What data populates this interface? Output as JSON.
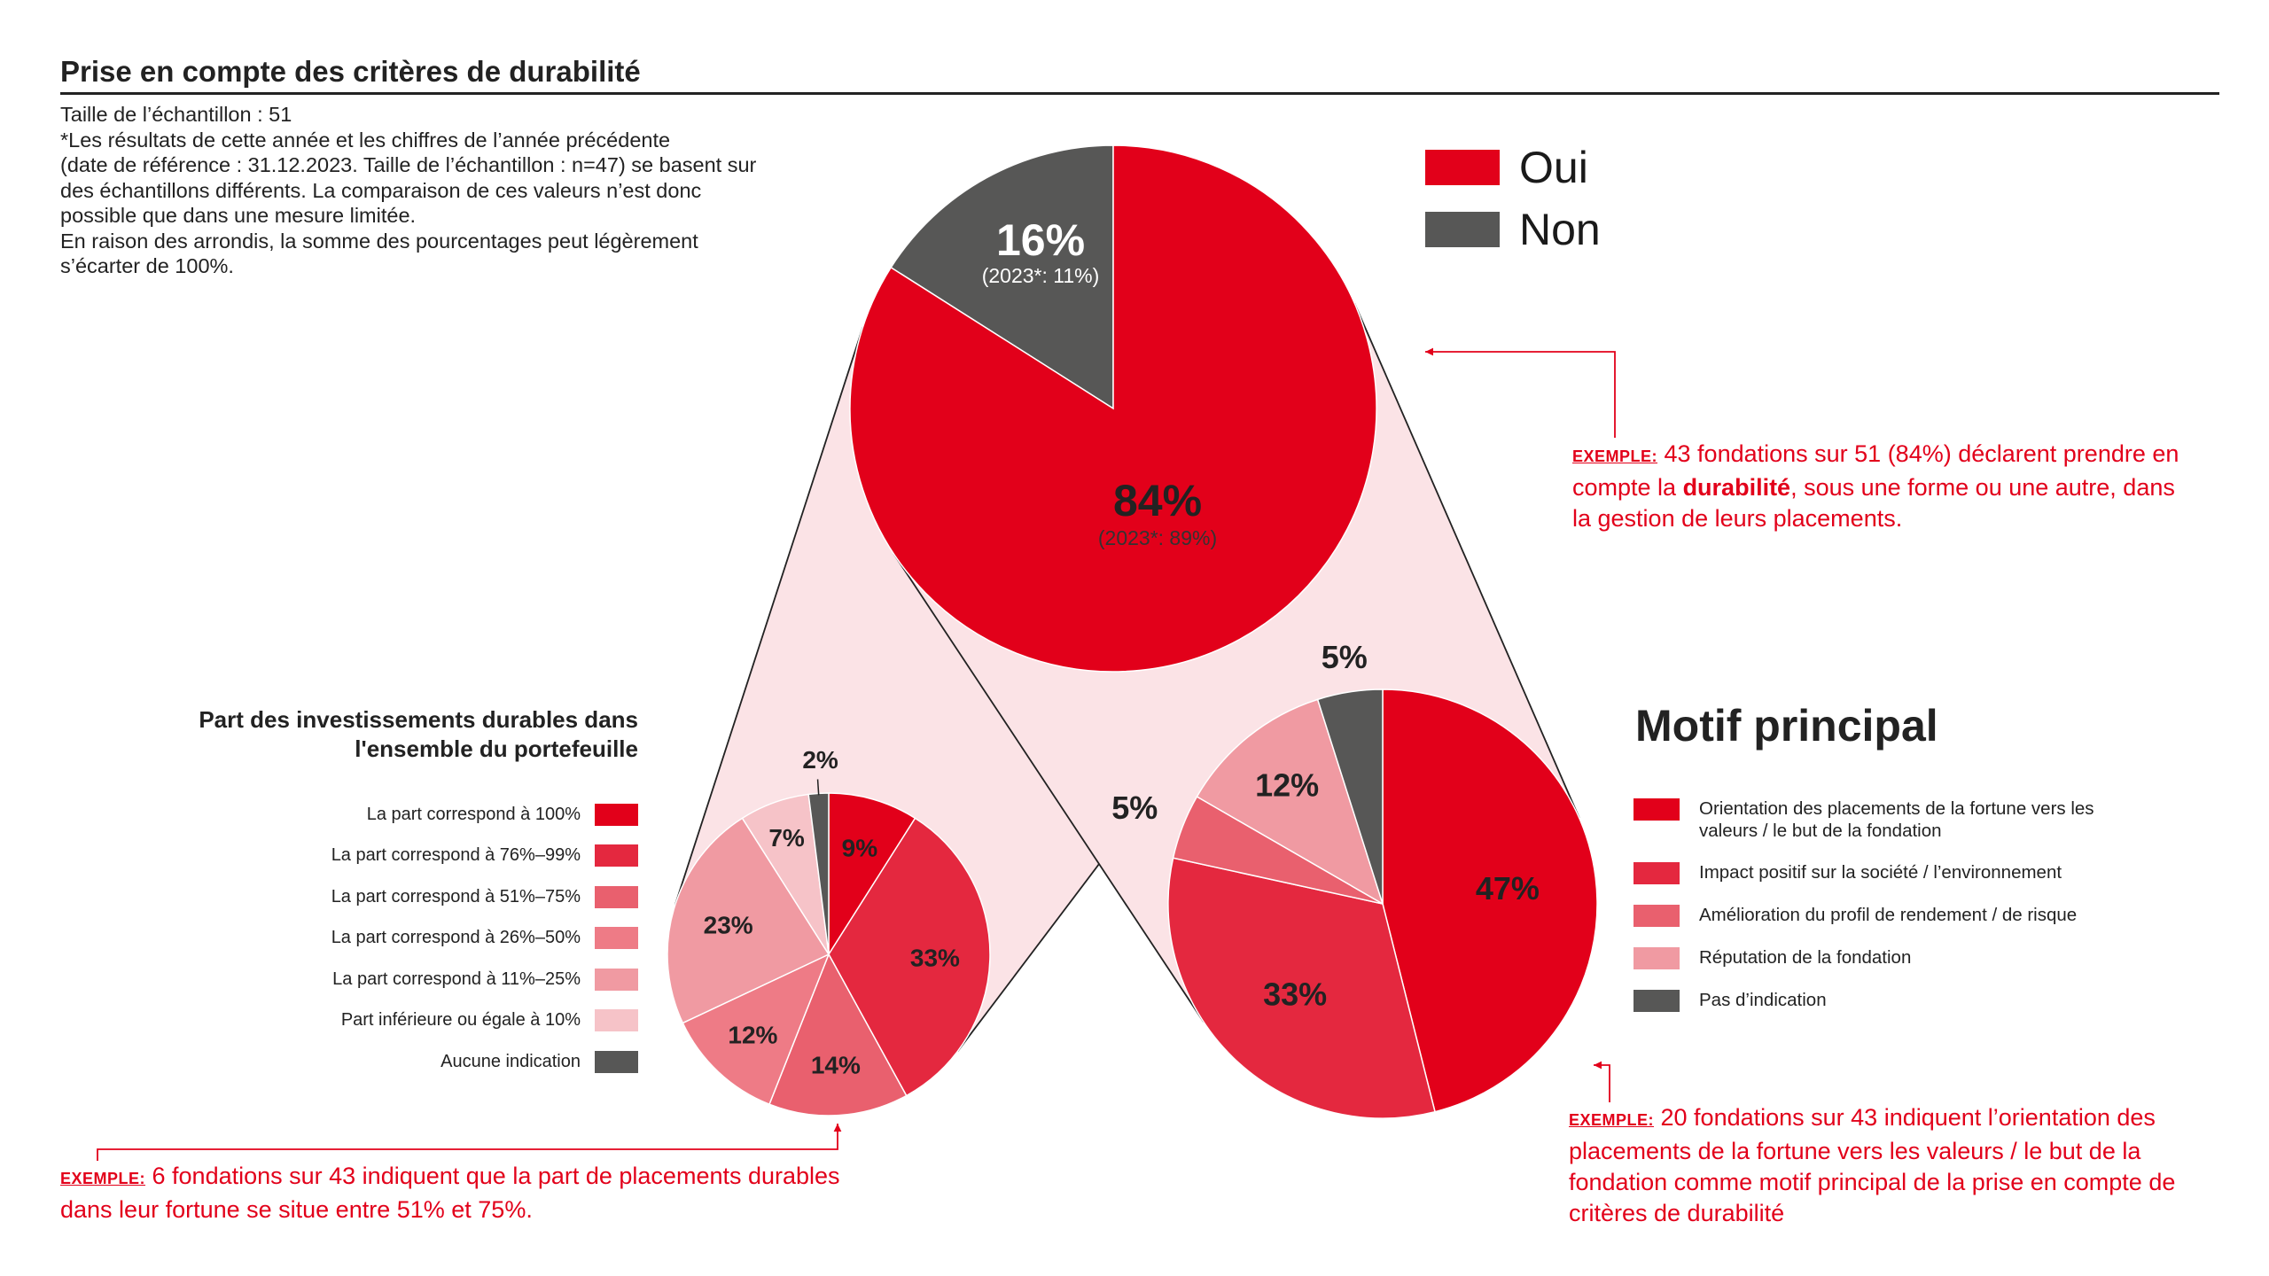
{
  "header": {
    "title": "Prise en compte des critères de durabilité",
    "notes": [
      "Taille de l’échantillon : 51",
      "*Les résultats de cette année et les chiffres de l’année précédente",
      "(date de référence : 31.12.2023. Taille de l’échantillon : n=47) se basent sur",
      "des échantillons différents. La comparaison de ces valeurs n’est donc",
      "possible que dans une mesure limitée.",
      "En raison des arrondis, la somme des pourcentages peut légèrement",
      "s’écarter de 100%."
    ]
  },
  "colors": {
    "red": "#e2001a",
    "red2": "#e4283f",
    "red3": "#e9606e",
    "red4": "#f09aa2",
    "red5": "#f6c3c8",
    "grey": "#575756",
    "connector": "#fbe3e6",
    "line": "#222222"
  },
  "legend_main": [
    {
      "label": "Oui",
      "color": "#e2001a"
    },
    {
      "label": "Non",
      "color": "#575756"
    }
  ],
  "callouts": {
    "tag": "EXEMPLE:",
    "main": {
      "pre": " 43 fondations sur 51 (84%) déclarent prendre en compte la ",
      "bold": "durabilité",
      "post": ", sous une forme ou une autre, dans la gestion de leurs placements."
    },
    "left": {
      "text": " 6 fondations sur 43 indiquent que la part de placements durables dans leur fortune se situe entre 51% et 75%."
    },
    "right": {
      "text": " 20 fondations sur 43 indiquent l’orientation des placements de la fortune vers les valeurs / le but de la fondation comme motif principal de la prise en compte de critères de durabilité"
    }
  },
  "left_title": [
    "Part des investissements durables dans",
    "l'ensemble du portefeuille"
  ],
  "right_title": "Motif principal",
  "chart_data": [
    {
      "type": "pie",
      "title": "",
      "slices": [
        {
          "label": "Oui",
          "value": 84,
          "display": "84%",
          "prev": "(2023*: 89%)",
          "color": "#e2001a"
        },
        {
          "label": "Non",
          "value": 16,
          "display": "16%",
          "prev": "(2023*: 11%)",
          "color": "#575756"
        }
      ],
      "legend": "top-right"
    },
    {
      "type": "pie",
      "title": "Part des investissements durables dans l'ensemble du portefeuille",
      "slices": [
        {
          "label": "La part correspond à 100%",
          "value": 9,
          "display": "9%",
          "color": "#e2001a"
        },
        {
          "label": "La part correspond à 76%–99%",
          "value": 33,
          "display": "33%",
          "color": "#e4283f"
        },
        {
          "label": "La part correspond à 51%–75%",
          "value": 14,
          "display": "14%",
          "color": "#e9606e"
        },
        {
          "label": "La part correspond à 26%–50%",
          "value": 12,
          "display": "12%",
          "color": "#ee7b86"
        },
        {
          "label": "La part correspond à 11%–25%",
          "value": 23,
          "display": "23%",
          "color": "#f09aa2"
        },
        {
          "label": "Part inférieure ou égale à 10%",
          "value": 7,
          "display": "7%",
          "color": "#f6c3c8"
        },
        {
          "label": "Aucune indication",
          "value": 2,
          "display": "2%",
          "color": "#575756"
        }
      ],
      "legend": "left"
    },
    {
      "type": "pie",
      "title": "Motif principal",
      "slices": [
        {
          "label": "Orientation des placements de la fortune vers les valeurs / le but de la fondation",
          "value": 47,
          "display": "47%",
          "color": "#e2001a"
        },
        {
          "label": "Impact positif sur la société / l’environnement",
          "value": 33,
          "display": "33%",
          "color": "#e4283f"
        },
        {
          "label": "Amélioration du profil de rendement / de risque",
          "value": 5,
          "display": "5%",
          "color": "#e9606e"
        },
        {
          "label": "Réputation de la fondation",
          "value": 12,
          "display": "12%",
          "color": "#f09aa2"
        },
        {
          "label": "Pas d’indication",
          "value": 5,
          "display": "5%",
          "color": "#575756"
        }
      ],
      "legend": "right"
    }
  ]
}
